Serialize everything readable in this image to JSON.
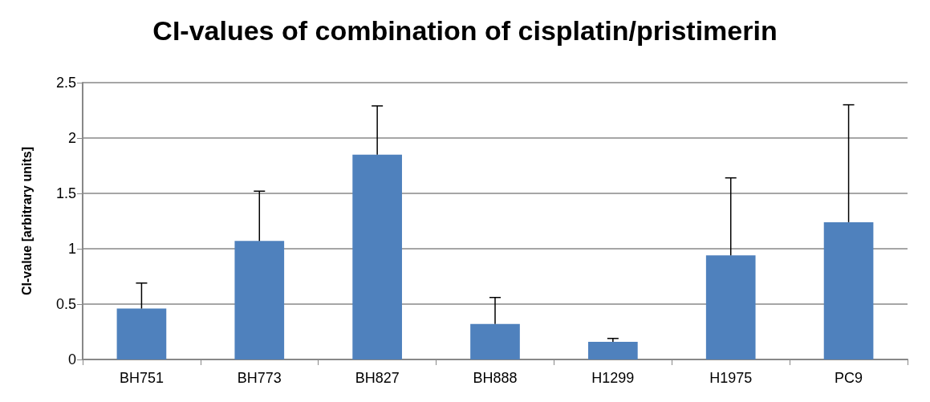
{
  "chart_data": {
    "type": "bar",
    "title": "CI-values of combination of cisplatin/pristimerin",
    "ylabel": "CI-value [arbitrary units]",
    "categories": [
      "BH751",
      "BH773",
      "BH827",
      "BH888",
      "H1299",
      "H1975",
      "PC9"
    ],
    "values": [
      0.46,
      1.07,
      1.85,
      0.32,
      0.16,
      0.94,
      1.24
    ],
    "errors": [
      [
        0.46,
        0.69
      ],
      [
        1.07,
        1.52
      ],
      [
        1.85,
        2.29
      ],
      [
        0.32,
        0.56
      ],
      [
        0.16,
        0.19
      ],
      [
        0.94,
        1.64
      ],
      [
        1.24,
        2.3
      ]
    ],
    "color": "#4f81bd",
    "ylim": [
      0,
      2.5
    ],
    "yticks": [
      0,
      0.5,
      1,
      1.5,
      2,
      2.5
    ],
    "grid": "y"
  }
}
